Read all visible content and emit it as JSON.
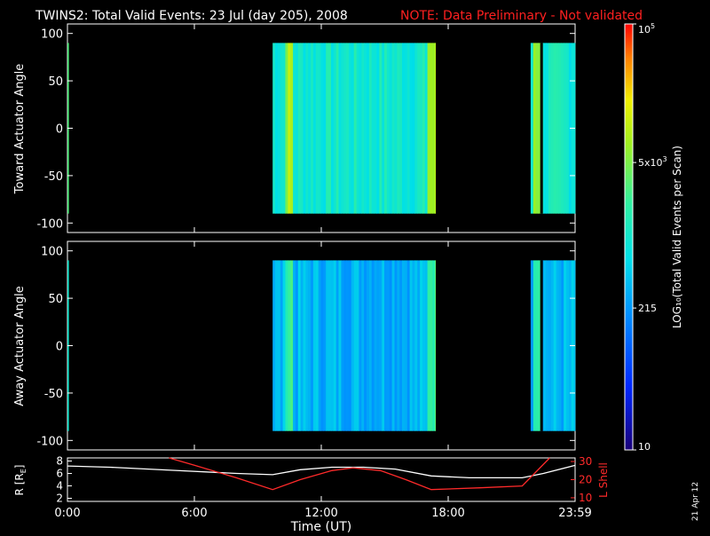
{
  "header": {
    "title": "TWINS2: Total Valid Events: 23 Jul (day 205), 2008",
    "note": "NOTE: Data Preliminary - Not validated",
    "note_color": "#ff2020"
  },
  "side_label": "21 Apr 12",
  "colors": {
    "white": "#ffffff",
    "red": "#ff2a2a",
    "background": "#000000"
  },
  "chart_data": [
    {
      "type": "heatmap",
      "ylabel": "Toward Actuator Angle",
      "yticks": [
        "100",
        "50",
        "0",
        "-50",
        "-100"
      ],
      "ylim": [
        -110,
        110
      ],
      "xlim_hours": [
        0,
        24
      ],
      "angle_range": [
        -90,
        90
      ],
      "data_intervals_hours": [
        [
          -0.1,
          0.05
        ],
        [
          9.7,
          17.4
        ],
        [
          21.9,
          24
        ]
      ],
      "dark_stripes_hours": [
        22.35
      ],
      "levels_description": "mostly cyan/green (~1000-3000 events), brighter yellow-green stripes near 10.4, 17.2 and 22.0 h"
    },
    {
      "type": "heatmap",
      "ylabel": "Away Actuator Angle",
      "yticks": [
        "100",
        "50",
        "0",
        "-50",
        "-100"
      ],
      "ylim": [
        -110,
        110
      ],
      "xlim_hours": [
        0,
        24
      ],
      "angle_range": [
        -90,
        90
      ],
      "data_intervals_hours": [
        [
          -0.1,
          0.05
        ],
        [
          9.7,
          17.4
        ],
        [
          21.9,
          24
        ]
      ],
      "dark_stripes_hours": [
        22.35
      ],
      "levels_description": "mostly blue/cyan (~300-1000 events), brighter stripes near 10.4, 17.2 and 22.0 h"
    },
    {
      "type": "line",
      "ylabel_left": "R [R",
      "ylabel_left_sub": "E",
      "ylabel_right": "L Shell",
      "yticks_left": [
        "8",
        "6",
        "4",
        "2"
      ],
      "ylim_left": [
        1.5,
        8.5
      ],
      "yticks_right": [
        "30",
        "20",
        "10"
      ],
      "ylim_right": [
        8,
        32
      ],
      "xlabel": "Time (UT)",
      "xticks": [
        "0:00",
        "6:00",
        "12:00",
        "18:00",
        "23:59"
      ],
      "xlim_hours": [
        0,
        24
      ],
      "series": [
        {
          "color": "white",
          "axis": "left",
          "x": [
            0,
            2,
            5,
            8,
            9.7,
            11,
            12.5,
            14,
            15.5,
            17.2,
            19,
            21.5,
            22.5,
            24
          ],
          "y": [
            7.2,
            7.0,
            6.5,
            6.0,
            5.8,
            6.6,
            7.0,
            7.0,
            6.7,
            5.6,
            5.3,
            5.3,
            6.0,
            7.3
          ]
        },
        {
          "color": "red",
          "axis": "right",
          "x": [
            4.8,
            6,
            8,
            9.7,
            11,
            12.5,
            13.5,
            14.8,
            16,
            17.2,
            19.5,
            21.5,
            22.8
          ],
          "y": [
            32,
            28,
            21,
            14.5,
            20,
            25,
            26.5,
            25,
            20,
            14.5,
            15.5,
            16.5,
            32
          ]
        }
      ]
    }
  ],
  "colorbar": {
    "label": "LOG₁₀(Total Valid Events per Scan)",
    "ticks": [
      {
        "value": 100000,
        "label": "10",
        "sup": "5"
      },
      {
        "value": 5000,
        "label": "5x10",
        "sup": "3"
      },
      {
        "value": 215,
        "label": "215",
        "sup": ""
      },
      {
        "value": 10,
        "label": "10",
        "sup": ""
      }
    ],
    "range": [
      10,
      100000
    ],
    "scale": "log"
  }
}
